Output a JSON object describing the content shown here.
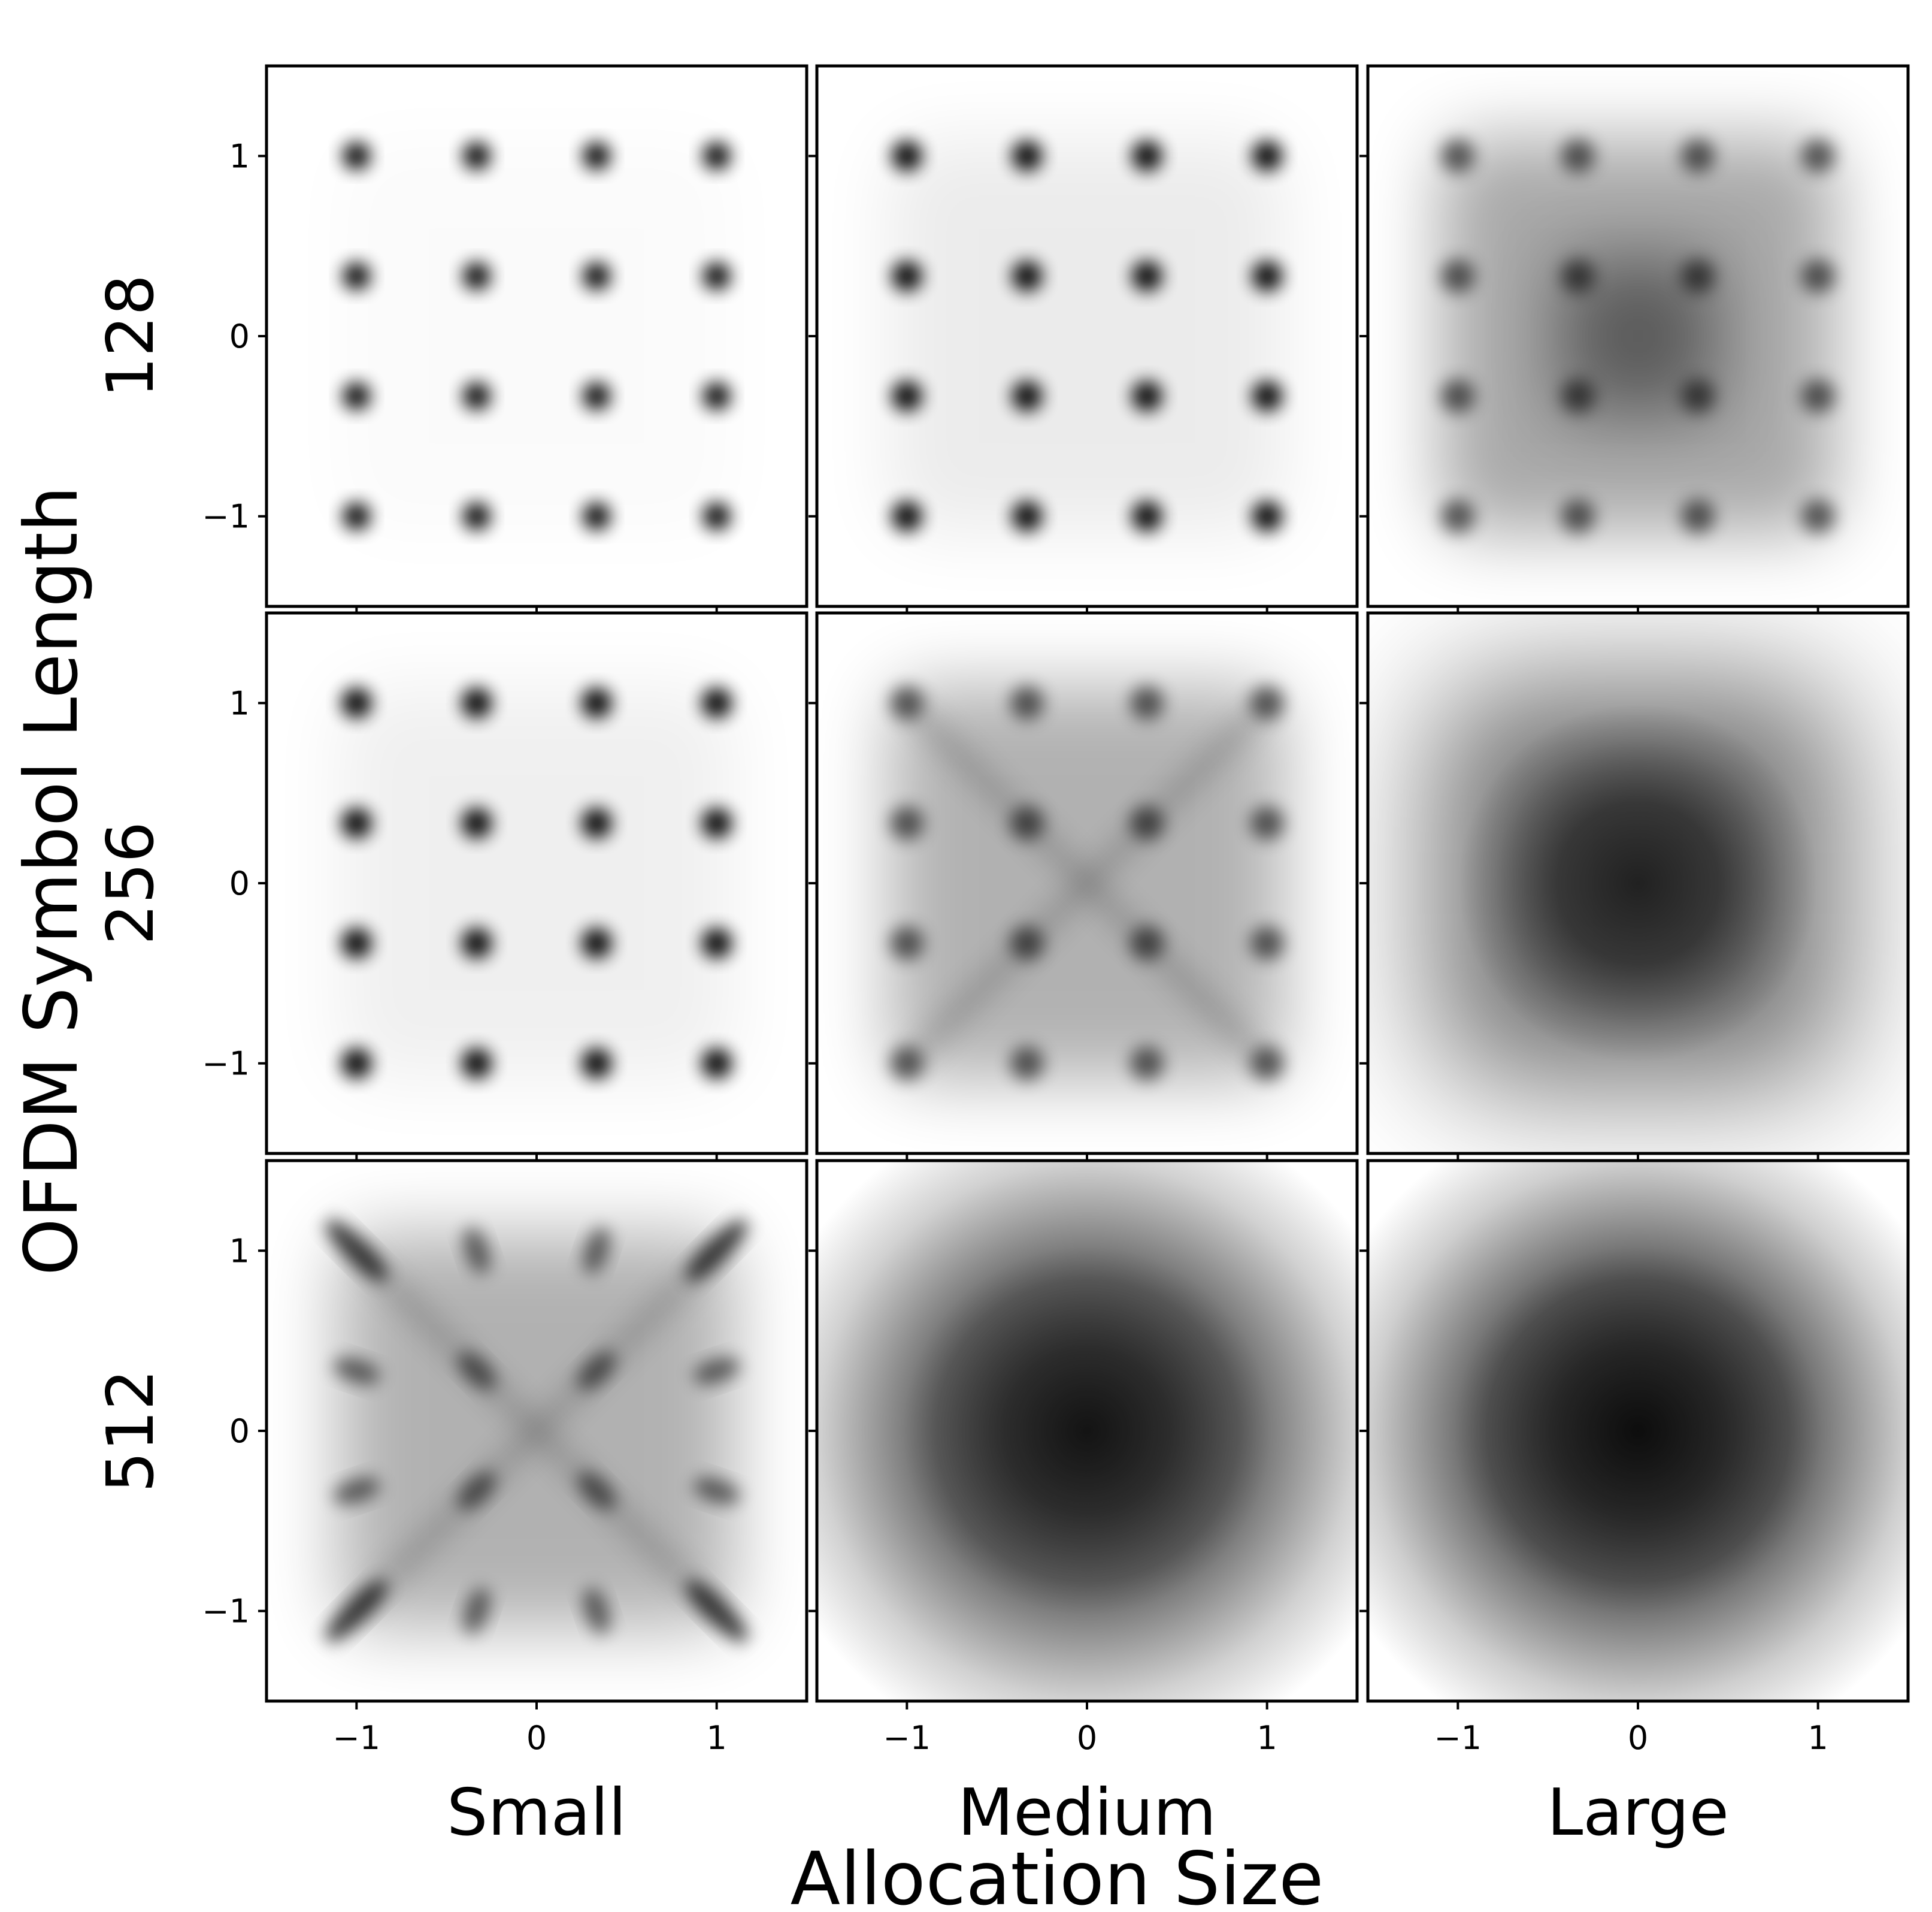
{
  "chart_data": {
    "type": "heatmap",
    "description_type": "grid of 2D density plots (16-QAM constellation histograms)",
    "xlabel": "Allocation Size",
    "ylabel": "OFDM Symbol Length",
    "columns": [
      "Small",
      "Medium",
      "Large"
    ],
    "rows": [
      "128",
      "256",
      "512"
    ],
    "xlim": [
      -1.5,
      1.5
    ],
    "ylim": [
      -1.5,
      1.5
    ],
    "xticks": [
      -1,
      0,
      1
    ],
    "yticks": [
      -1,
      0,
      1
    ],
    "xtick_labels": [
      "−1",
      "0",
      "1"
    ],
    "ytick_labels": [
      "1",
      "0",
      "−1"
    ],
    "constellation_points": [
      -1,
      -0.333,
      0.333,
      1
    ],
    "colormap": "Greys",
    "panels": [
      {
        "row": "128",
        "column": "Small",
        "pattern": "clear 4x4 grid",
        "spread": 0.06,
        "bg": 0.02
      },
      {
        "row": "128",
        "column": "Medium",
        "pattern": "4x4 grid, slight blur",
        "spread": 0.08,
        "bg": 0.1
      },
      {
        "row": "128",
        "column": "Large",
        "pattern": "blurred grid with dark center",
        "spread": 0.1,
        "bg": 0.45
      },
      {
        "row": "256",
        "column": "Small",
        "pattern": "4x4 grid, slight blur",
        "spread": 0.08,
        "bg": 0.08
      },
      {
        "row": "256",
        "column": "Medium",
        "pattern": "blurred grid with diagonal streaks",
        "spread": 0.1,
        "bg": 0.4
      },
      {
        "row": "256",
        "column": "Large",
        "pattern": "diffuse square cloud",
        "spread": 0.0,
        "bg": 0.85
      },
      {
        "row": "512",
        "column": "Small",
        "pattern": "streaked grid",
        "spread": 0.1,
        "bg": 0.4
      },
      {
        "row": "512",
        "column": "Medium",
        "pattern": "gaussian cloud",
        "spread": 0.0,
        "bg": 0.9
      },
      {
        "row": "512",
        "column": "Large",
        "pattern": "gaussian cloud",
        "spread": 0.0,
        "bg": 0.95
      }
    ]
  }
}
